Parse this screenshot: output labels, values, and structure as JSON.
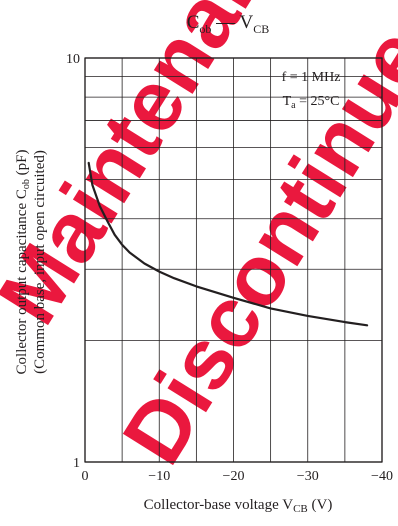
{
  "chart_data": {
    "type": "line",
    "title": {
      "main": "C",
      "main_sub": "ob",
      "sep": " — ",
      "var": "V",
      "var_sub": "CB"
    },
    "xlabel": {
      "text": "Collector-base voltage  V",
      "sub": "CB",
      "unit": "  (V)"
    },
    "ylabel": {
      "line1_text": "Collector output capacitance   C",
      "line1_sub": "ob",
      "line1_unit": "  (pF)",
      "line2": "(Common base, input open circuited)"
    },
    "xlim": [
      0,
      -40
    ],
    "ylim": [
      1,
      10
    ],
    "yscale": "log",
    "x_ticks": [
      "0",
      "−10",
      "−20",
      "−30",
      "−40"
    ],
    "y_ticks": [
      "1",
      "10"
    ],
    "grid": true,
    "annotations": {
      "freq": "f = 1 MHz",
      "temp_main": "T",
      "temp_sub": "a",
      "temp_val": " = 25°C"
    },
    "series": [
      {
        "x": [
          -0.5,
          -1,
          -2,
          -3,
          -4,
          -5,
          -6,
          -8,
          -10,
          -12,
          -15,
          -20,
          -25,
          -30,
          -35,
          -38
        ],
        "y": [
          5.5,
          4.85,
          4.3,
          3.95,
          3.65,
          3.45,
          3.3,
          3.1,
          2.96,
          2.85,
          2.72,
          2.55,
          2.4,
          2.3,
          2.22,
          2.18
        ]
      }
    ]
  },
  "watermark": {
    "line1": "Maintenance",
    "line2": "Discontinued"
  },
  "colors": {
    "curve": "#231f20",
    "grid": "#231f20",
    "watermark": "#e8002a"
  }
}
